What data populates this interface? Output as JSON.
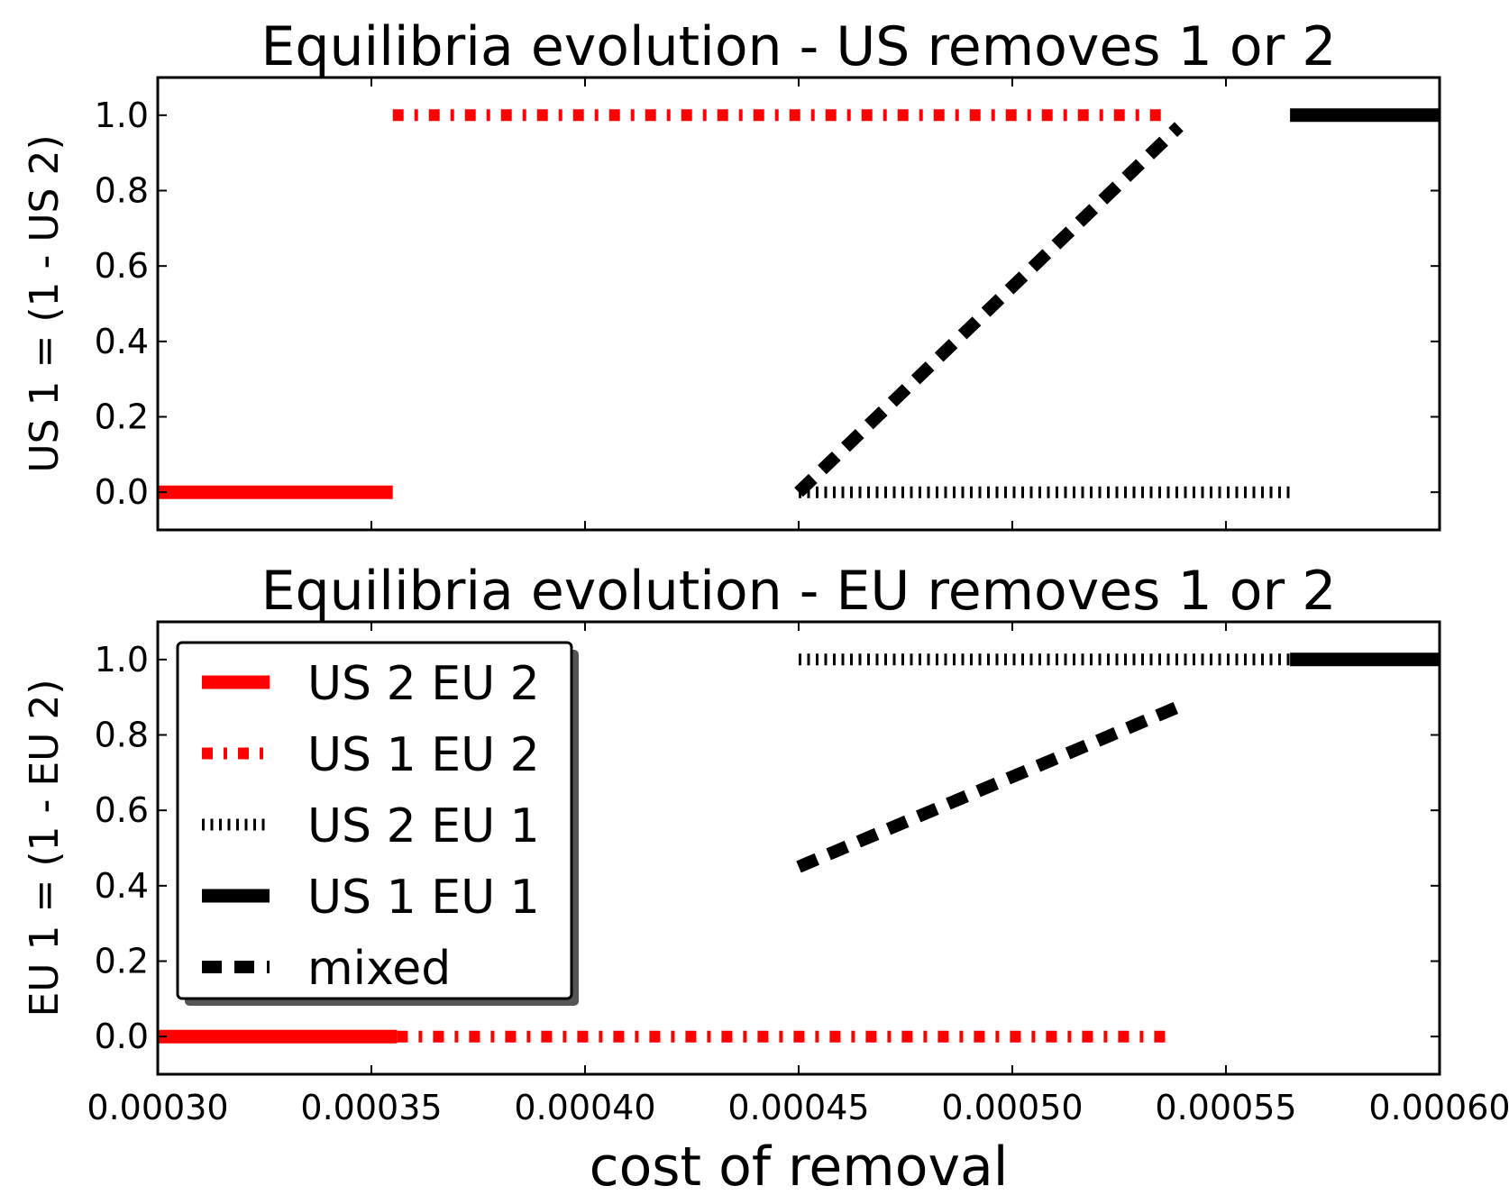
{
  "chart_data": [
    {
      "type": "line",
      "title": "Equilibria evolution - US removes 1 or 2",
      "ylabel": "US 1 = (1 - US 2)",
      "xlabel": "",
      "xlim": [
        0.0003,
        0.0006
      ],
      "ylim": [
        -0.1,
        1.1
      ],
      "xticks": [
        0.0003,
        0.00035,
        0.0004,
        0.00045,
        0.0005,
        0.00055,
        0.0006
      ],
      "xtick_labels": [],
      "yticks": [
        0.0,
        0.2,
        0.4,
        0.6,
        0.8,
        1.0
      ],
      "ytick_labels": [
        "0.0",
        "0.2",
        "0.4",
        "0.6",
        "0.8",
        "1.0"
      ],
      "legend": "none",
      "series": [
        {
          "style": "US2EU2",
          "color": "#ff0000",
          "x": [
            0.0003,
            0.000355
          ],
          "y": [
            0.0,
            0.0
          ]
        },
        {
          "style": "US1EU2",
          "color": "#ff0000",
          "x": [
            0.000355,
            0.000537
          ],
          "y": [
            1.0,
            1.0
          ]
        },
        {
          "style": "US2EU1",
          "color": "#000000",
          "x": [
            0.00045,
            0.000565
          ],
          "y": [
            0.0,
            0.0
          ]
        },
        {
          "style": "US1EU1",
          "color": "#000000",
          "x": [
            0.000565,
            0.0006
          ],
          "y": [
            1.0,
            1.0
          ]
        },
        {
          "style": "mixed",
          "color": "#000000",
          "x": [
            0.00045,
            0.000539
          ],
          "y": [
            0.0,
            0.97
          ]
        }
      ]
    },
    {
      "type": "line",
      "title": "Equilibria evolution - EU removes 1 or 2",
      "ylabel": "EU 1 = (1 - EU 2)",
      "xlabel": "cost of removal",
      "xlim": [
        0.0003,
        0.0006
      ],
      "ylim": [
        -0.1,
        1.1
      ],
      "xticks": [
        0.0003,
        0.00035,
        0.0004,
        0.00045,
        0.0005,
        0.00055,
        0.0006
      ],
      "xtick_labels": [
        "0.00030",
        "0.00035",
        "0.00040",
        "0.00045",
        "0.00050",
        "0.00055",
        "0.00060"
      ],
      "yticks": [
        0.0,
        0.2,
        0.4,
        0.6,
        0.8,
        1.0
      ],
      "ytick_labels": [
        "0.0",
        "0.2",
        "0.4",
        "0.6",
        "0.8",
        "1.0"
      ],
      "legend": "upper-left",
      "legend_entries": [
        {
          "label": "US 2 EU 2",
          "style": "US2EU2",
          "color": "#ff0000"
        },
        {
          "label": "US 1 EU 2",
          "style": "US1EU2",
          "color": "#ff0000"
        },
        {
          "label": "US 2 EU 1",
          "style": "US2EU1",
          "color": "#000000"
        },
        {
          "label": "US 1 EU 1",
          "style": "US1EU1",
          "color": "#000000"
        },
        {
          "label": "mixed",
          "style": "mixed",
          "color": "#000000"
        }
      ],
      "series": [
        {
          "style": "US2EU2",
          "color": "#ff0000",
          "x": [
            0.0003,
            0.000356
          ],
          "y": [
            0.0,
            0.0
          ]
        },
        {
          "style": "US1EU2",
          "color": "#ff0000",
          "x": [
            0.000356,
            0.000537
          ],
          "y": [
            0.0,
            0.0
          ]
        },
        {
          "style": "US2EU1",
          "color": "#000000",
          "x": [
            0.00045,
            0.000565
          ],
          "y": [
            1.0,
            1.0
          ]
        },
        {
          "style": "US1EU1",
          "color": "#000000",
          "x": [
            0.000565,
            0.0006
          ],
          "y": [
            1.0,
            1.0
          ]
        },
        {
          "style": "mixed",
          "color": "#000000",
          "x": [
            0.00045,
            0.00054
          ],
          "y": [
            0.45,
            0.88
          ]
        }
      ]
    }
  ]
}
